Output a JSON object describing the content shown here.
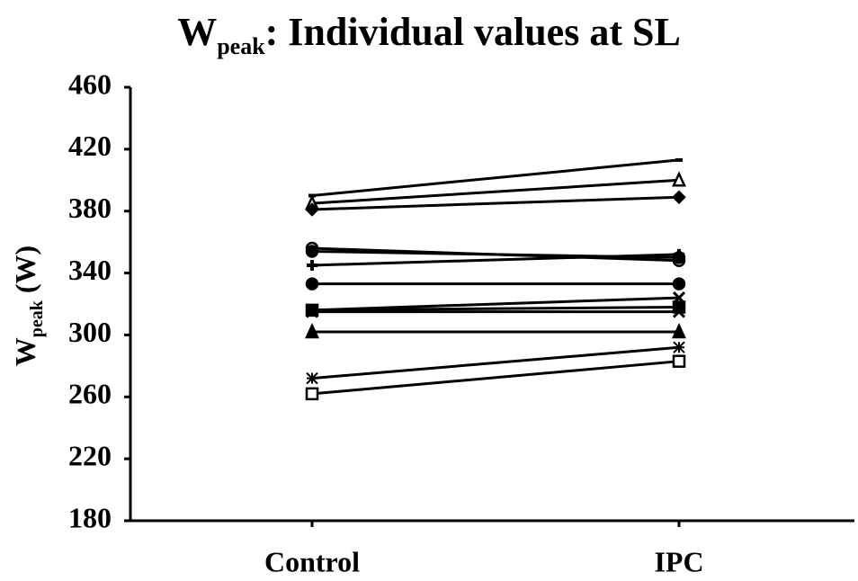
{
  "chart_data": {
    "type": "line",
    "title": [
      "W",
      "peak",
      ": Individual values at SL"
    ],
    "y_label": [
      "W",
      "peak",
      " (W)"
    ],
    "categories": [
      "Control",
      "IPC"
    ],
    "ylim": [
      180,
      460
    ],
    "yticks": [
      180,
      220,
      260,
      300,
      340,
      380,
      420,
      460
    ],
    "color": "#000000",
    "series": [
      {
        "marker": "dash",
        "values": [
          390,
          413
        ]
      },
      {
        "marker": "triangle-open",
        "values": [
          385,
          400
        ]
      },
      {
        "marker": "diamond",
        "values": [
          381,
          389
        ]
      },
      {
        "marker": "circle-open",
        "values": [
          356,
          348
        ]
      },
      {
        "marker": "circle",
        "values": [
          354,
          350
        ]
      },
      {
        "marker": "plus",
        "values": [
          345,
          352
        ]
      },
      {
        "marker": "circle",
        "values": [
          333,
          333
        ]
      },
      {
        "marker": "x",
        "values": [
          316,
          324
        ]
      },
      {
        "marker": "square",
        "values": [
          316,
          318
        ]
      },
      {
        "marker": "x",
        "values": [
          315,
          315
        ]
      },
      {
        "marker": "triangle",
        "values": [
          302,
          302
        ]
      },
      {
        "marker": "asterisk",
        "values": [
          272,
          292
        ]
      },
      {
        "marker": "square-open",
        "values": [
          262,
          283
        ]
      }
    ]
  }
}
